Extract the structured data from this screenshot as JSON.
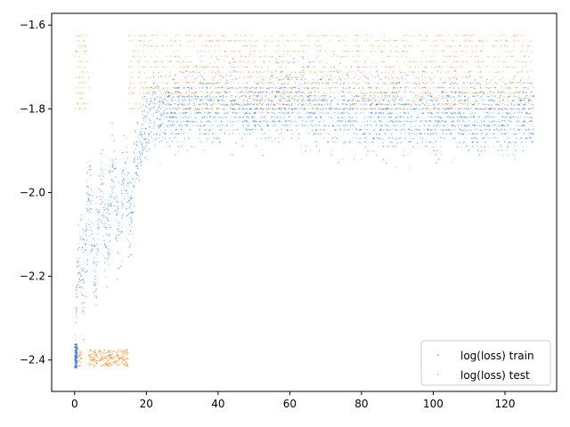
{
  "chart_data": {
    "type": "scatter",
    "title": "",
    "xlabel": "",
    "ylabel": "",
    "xlim": [
      -6.4,
      134.4
    ],
    "ylim": [
      -2.475,
      -1.572
    ],
    "x_ticks": [
      0,
      20,
      40,
      60,
      80,
      100,
      120
    ],
    "y_ticks": [
      -2.4,
      -2.2,
      -2.0,
      -1.8,
      -1.6
    ],
    "x_tick_labels": [
      "0",
      "20",
      "40",
      "60",
      "80",
      "100",
      "120"
    ],
    "y_tick_labels": [
      "−2.4",
      "−2.2",
      "−2.0",
      "−1.8",
      "−1.6"
    ],
    "grid": false,
    "legend_position": "lower-right",
    "series": [
      {
        "name": "log(loss) train",
        "color": "#1f77f4",
        "description_points": [
          {
            "x": 0,
            "y_low": -2.42,
            "y_high": -2.36
          },
          {
            "x": 1,
            "y_low": -2.38,
            "y_high": -2.1
          },
          {
            "x": 2,
            "y_low": -2.3,
            "y_high": -1.9
          },
          {
            "x": 5,
            "y_low": -2.3,
            "y_high": -1.95
          },
          {
            "x": 10,
            "y_low": -2.2,
            "y_high": -1.85
          },
          {
            "x": 15,
            "y_low": -2.2,
            "y_high": -1.85
          },
          {
            "x": 20,
            "y_low": -1.95,
            "y_high": -1.7
          },
          {
            "x": 30,
            "y_low": -1.93,
            "y_high": -1.68
          },
          {
            "x": 40,
            "y_low": -1.92,
            "y_high": -1.67
          },
          {
            "x": 60,
            "y_low": -1.92,
            "y_high": -1.65
          },
          {
            "x": 80,
            "y_low": -1.95,
            "y_high": -1.67
          },
          {
            "x": 100,
            "y_low": -1.95,
            "y_high": -1.68
          },
          {
            "x": 128,
            "y_low": -1.95,
            "y_high": -1.68
          }
        ]
      },
      {
        "name": "log(loss) test",
        "color": "#ff7f0e",
        "description_points": [
          {
            "x": 0,
            "y_low": -1.8,
            "y_high": -1.64
          },
          {
            "x": 4,
            "y_low": -1.8,
            "y_high": -1.64
          },
          {
            "x": 1,
            "y_low": -2.41,
            "y_high": -2.38
          },
          {
            "x": 4,
            "y_low": -2.42,
            "y_high": -2.38
          },
          {
            "x": 15,
            "y_low": -2.42,
            "y_high": -2.37
          },
          {
            "x": 15,
            "y_low": -1.8,
            "y_high": -1.63
          },
          {
            "x": 60,
            "y_low": -1.8,
            "y_high": -1.62
          },
          {
            "x": 128,
            "y_low": -1.8,
            "y_high": -1.62
          }
        ]
      }
    ]
  }
}
